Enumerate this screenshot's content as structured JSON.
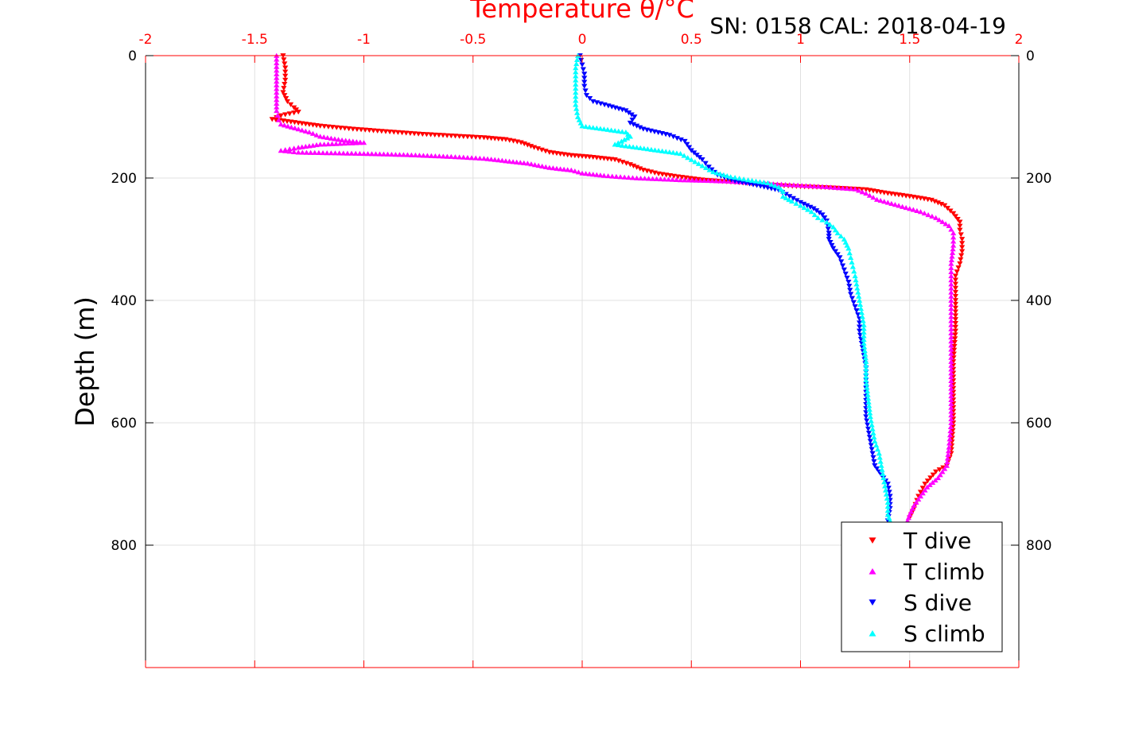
{
  "chart_data": {
    "type": "scatter",
    "title": "SN: 0158  CAL: 2018-04-19",
    "xlabel": "Temperature θ/°C",
    "ylabel": "Depth (m)",
    "xlim": [
      -2,
      2
    ],
    "ylim": [
      0,
      1000
    ],
    "y_reversed": true,
    "grid": true,
    "x_axis_position": "top",
    "y_axis_both_sides": true,
    "x_ticks": [
      "-2",
      "-1.5",
      "-1",
      "-0.5",
      "0",
      "0.5",
      "1",
      "1.5",
      "2"
    ],
    "y_ticks": [
      "0",
      "200",
      "400",
      "600",
      "800"
    ],
    "legend_position": "bottom-right",
    "colors": {
      "axis_x": "#ff0000",
      "axis_y": "#000000",
      "grid": "#e0e0e0"
    },
    "series": [
      {
        "name": "T dive",
        "color": "#ff0000",
        "marker": "triangle-down",
        "points": [
          [
            -1.37,
            0
          ],
          [
            -1.36,
            20
          ],
          [
            -1.36,
            40
          ],
          [
            -1.37,
            60
          ],
          [
            -1.35,
            75
          ],
          [
            -1.32,
            85
          ],
          [
            -1.3,
            92
          ],
          [
            -1.38,
            98
          ],
          [
            -1.42,
            104
          ],
          [
            -1.3,
            110
          ],
          [
            -1.2,
            115
          ],
          [
            -1.05,
            120
          ],
          [
            -0.9,
            124
          ],
          [
            -0.75,
            128
          ],
          [
            -0.6,
            131
          ],
          [
            -0.45,
            134
          ],
          [
            -0.35,
            137
          ],
          [
            -0.28,
            142
          ],
          [
            -0.22,
            150
          ],
          [
            -0.15,
            158
          ],
          [
            -0.05,
            163
          ],
          [
            0.05,
            166
          ],
          [
            0.15,
            170
          ],
          [
            0.22,
            178
          ],
          [
            0.28,
            187
          ],
          [
            0.35,
            193
          ],
          [
            0.42,
            197
          ],
          [
            0.55,
            203
          ],
          [
            0.7,
            207
          ],
          [
            0.85,
            211
          ],
          [
            1.0,
            214
          ],
          [
            1.15,
            216
          ],
          [
            1.3,
            219
          ],
          [
            1.4,
            225
          ],
          [
            1.5,
            230
          ],
          [
            1.6,
            236
          ],
          [
            1.66,
            245
          ],
          [
            1.7,
            258
          ],
          [
            1.73,
            272
          ],
          [
            1.73,
            285
          ],
          [
            1.74,
            300
          ],
          [
            1.74,
            320
          ],
          [
            1.73,
            340
          ],
          [
            1.71,
            360
          ],
          [
            1.71,
            400
          ],
          [
            1.71,
            450
          ],
          [
            1.7,
            500
          ],
          [
            1.7,
            550
          ],
          [
            1.7,
            600
          ],
          [
            1.69,
            650
          ],
          [
            1.67,
            670
          ],
          [
            1.62,
            680
          ],
          [
            1.57,
            700
          ],
          [
            1.54,
            720
          ],
          [
            1.52,
            740
          ],
          [
            1.5,
            755
          ]
        ]
      },
      {
        "name": "T climb",
        "color": "#ff00ff",
        "marker": "triangle-up",
        "points": [
          [
            -1.4,
            0
          ],
          [
            -1.4,
            30
          ],
          [
            -1.4,
            60
          ],
          [
            -1.4,
            90
          ],
          [
            -1.39,
            105
          ],
          [
            -1.38,
            112
          ],
          [
            -1.3,
            120
          ],
          [
            -1.25,
            125
          ],
          [
            -1.2,
            132
          ],
          [
            -1.1,
            138
          ],
          [
            -1.0,
            142
          ],
          [
            -1.2,
            145
          ],
          [
            -1.3,
            150
          ],
          [
            -1.38,
            155
          ],
          [
            -1.3,
            158
          ],
          [
            -1.0,
            160
          ],
          [
            -0.8,
            162
          ],
          [
            -0.6,
            165
          ],
          [
            -0.45,
            168
          ],
          [
            -0.35,
            172
          ],
          [
            -0.25,
            176
          ],
          [
            -0.15,
            183
          ],
          [
            -0.05,
            187
          ],
          [
            0.0,
            192
          ],
          [
            0.1,
            196
          ],
          [
            0.25,
            200
          ],
          [
            0.45,
            203
          ],
          [
            0.65,
            205
          ],
          [
            0.8,
            208
          ],
          [
            0.95,
            211
          ],
          [
            1.1,
            214
          ],
          [
            1.25,
            218
          ],
          [
            1.3,
            225
          ],
          [
            1.35,
            235
          ],
          [
            1.45,
            245
          ],
          [
            1.55,
            255
          ],
          [
            1.62,
            265
          ],
          [
            1.68,
            278
          ],
          [
            1.7,
            290
          ],
          [
            1.7,
            310
          ],
          [
            1.69,
            340
          ],
          [
            1.69,
            380
          ],
          [
            1.69,
            420
          ],
          [
            1.69,
            460
          ],
          [
            1.69,
            500
          ],
          [
            1.69,
            550
          ],
          [
            1.69,
            600
          ],
          [
            1.68,
            640
          ],
          [
            1.67,
            670
          ],
          [
            1.63,
            690
          ],
          [
            1.58,
            705
          ],
          [
            1.55,
            720
          ],
          [
            1.52,
            735
          ],
          [
            1.5,
            750
          ],
          [
            1.49,
            760
          ]
        ]
      },
      {
        "name": "S dive",
        "color": "#0000ff",
        "marker": "triangle-down",
        "points": [
          [
            -0.01,
            0
          ],
          [
            0.0,
            15
          ],
          [
            0.01,
            30
          ],
          [
            0.01,
            50
          ],
          [
            0.02,
            65
          ],
          [
            0.05,
            75
          ],
          [
            0.12,
            82
          ],
          [
            0.2,
            90
          ],
          [
            0.24,
            100
          ],
          [
            0.22,
            110
          ],
          [
            0.28,
            120
          ],
          [
            0.4,
            130
          ],
          [
            0.47,
            140
          ],
          [
            0.5,
            155
          ],
          [
            0.55,
            170
          ],
          [
            0.58,
            182
          ],
          [
            0.62,
            195
          ],
          [
            0.7,
            205
          ],
          [
            0.8,
            212
          ],
          [
            0.9,
            220
          ],
          [
            0.95,
            230
          ],
          [
            1.0,
            240
          ],
          [
            1.06,
            250
          ],
          [
            1.1,
            260
          ],
          [
            1.12,
            270
          ],
          [
            1.13,
            290
          ],
          [
            1.13,
            300
          ],
          [
            1.15,
            315
          ],
          [
            1.18,
            330
          ],
          [
            1.2,
            350
          ],
          [
            1.22,
            370
          ],
          [
            1.23,
            390
          ],
          [
            1.25,
            410
          ],
          [
            1.27,
            430
          ],
          [
            1.27,
            450
          ],
          [
            1.28,
            470
          ],
          [
            1.29,
            490
          ],
          [
            1.3,
            510
          ],
          [
            1.3,
            530
          ],
          [
            1.3,
            550
          ],
          [
            1.3,
            570
          ],
          [
            1.3,
            590
          ],
          [
            1.31,
            610
          ],
          [
            1.32,
            630
          ],
          [
            1.33,
            650
          ],
          [
            1.34,
            670
          ],
          [
            1.37,
            685
          ],
          [
            1.4,
            700
          ],
          [
            1.41,
            720
          ],
          [
            1.41,
            740
          ],
          [
            1.4,
            760
          ]
        ]
      },
      {
        "name": "S climb",
        "color": "#00ffff",
        "marker": "triangle-up",
        "points": [
          [
            -0.02,
            0
          ],
          [
            -0.03,
            20
          ],
          [
            -0.03,
            40
          ],
          [
            -0.03,
            60
          ],
          [
            -0.03,
            80
          ],
          [
            -0.02,
            100
          ],
          [
            0.0,
            115
          ],
          [
            0.1,
            120
          ],
          [
            0.2,
            125
          ],
          [
            0.22,
            132
          ],
          [
            0.18,
            140
          ],
          [
            0.15,
            145
          ],
          [
            0.25,
            150
          ],
          [
            0.35,
            155
          ],
          [
            0.45,
            160
          ],
          [
            0.5,
            170
          ],
          [
            0.55,
            180
          ],
          [
            0.6,
            190
          ],
          [
            0.68,
            198
          ],
          [
            0.76,
            203
          ],
          [
            0.85,
            208
          ],
          [
            0.9,
            215
          ],
          [
            0.92,
            222
          ],
          [
            0.92,
            230
          ],
          [
            0.96,
            238
          ],
          [
            1.0,
            245
          ],
          [
            1.05,
            255
          ],
          [
            1.08,
            265
          ],
          [
            1.12,
            272
          ],
          [
            1.15,
            280
          ],
          [
            1.17,
            290
          ],
          [
            1.2,
            300
          ],
          [
            1.22,
            315
          ],
          [
            1.23,
            330
          ],
          [
            1.24,
            345
          ],
          [
            1.25,
            360
          ],
          [
            1.26,
            380
          ],
          [
            1.27,
            400
          ],
          [
            1.28,
            420
          ],
          [
            1.29,
            440
          ],
          [
            1.29,
            470
          ],
          [
            1.3,
            500
          ],
          [
            1.3,
            530
          ],
          [
            1.31,
            560
          ],
          [
            1.32,
            590
          ],
          [
            1.33,
            610
          ],
          [
            1.34,
            630
          ],
          [
            1.36,
            650
          ],
          [
            1.37,
            670
          ],
          [
            1.38,
            690
          ],
          [
            1.39,
            710
          ],
          [
            1.4,
            730
          ],
          [
            1.4,
            750
          ],
          [
            1.41,
            760
          ]
        ]
      }
    ]
  }
}
